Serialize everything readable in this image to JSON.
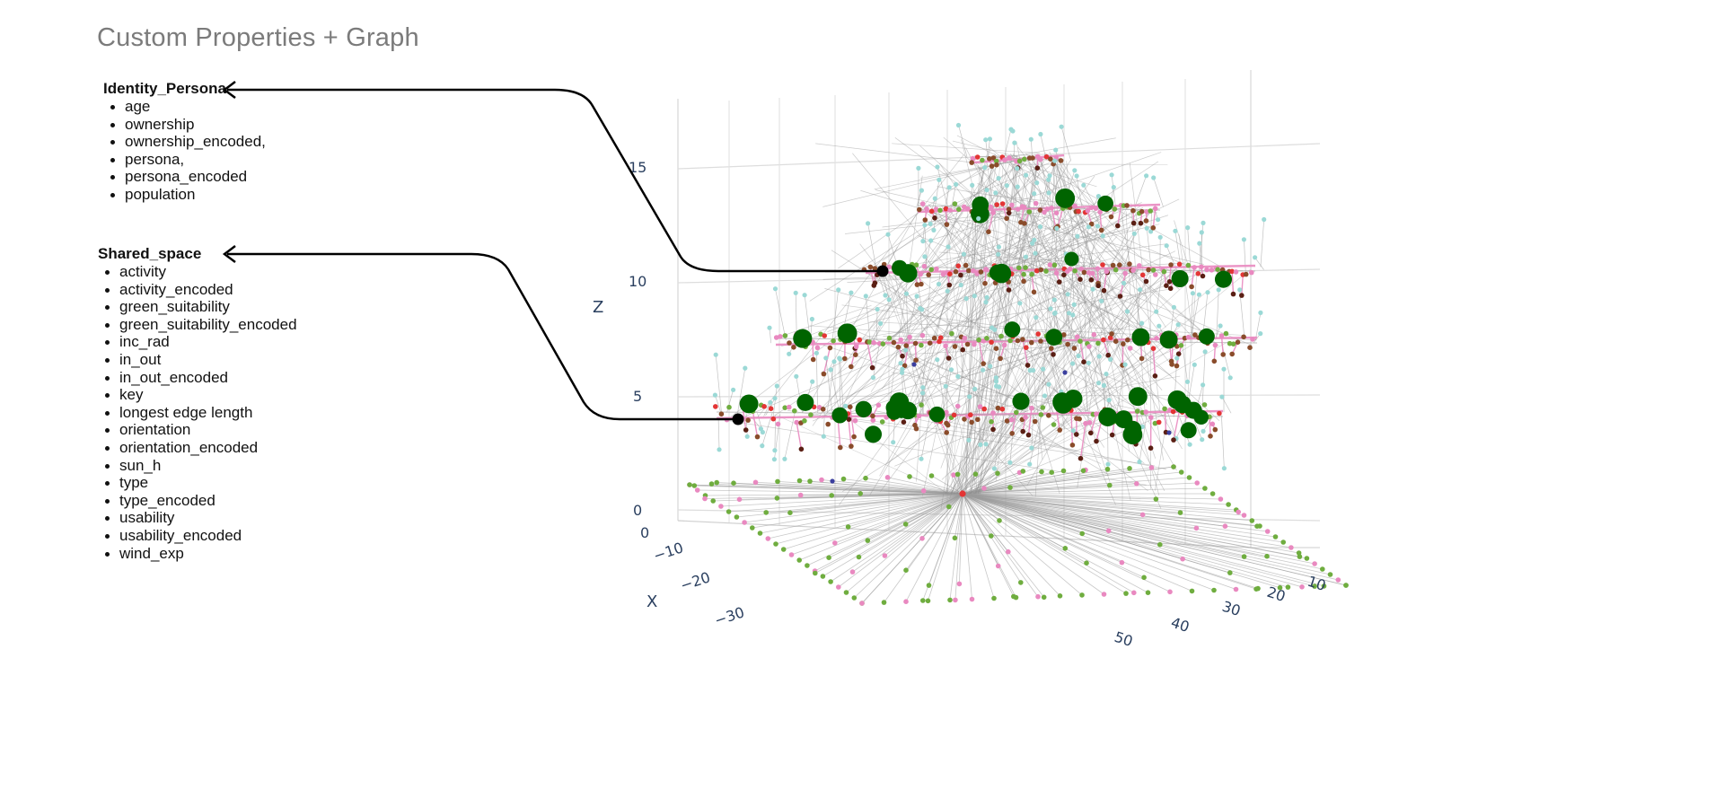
{
  "title": "Custom Properties + Graph",
  "groups": {
    "identity": {
      "name": "Identity_Persona",
      "items": [
        "age",
        "ownership",
        "ownership_encoded,",
        "persona,",
        "persona_encoded",
        "population"
      ]
    },
    "shared": {
      "name": "Shared_space",
      "items": [
        "activity",
        "activity_encoded",
        "green_suitability",
        "green_suitability_encoded",
        "inc_rad",
        "in_out",
        "in_out_encoded",
        "key",
        "longest edge length",
        "orientation",
        "orientation_encoded",
        "sun_h",
        "type",
        "type_encoded",
        "usability",
        "usability_encoded",
        "wind_exp"
      ]
    }
  },
  "chart_data": {
    "type": "scatter",
    "projection": "3d",
    "axes": {
      "x": {
        "label": "X",
        "ticks": [
          "0",
          "−10",
          "−20",
          "−30"
        ]
      },
      "y": {
        "label": "",
        "ticks": [
          "10",
          "20",
          "30",
          "40",
          "50"
        ]
      },
      "z": {
        "label": "Z",
        "ticks": [
          "0",
          "5",
          "10",
          "15"
        ],
        "range": [
          0,
          17
        ]
      }
    },
    "grid": true,
    "layers_z": [
      0,
      5,
      7.5,
      10,
      12.5,
      15
    ],
    "node_colors": {
      "green_node": "#006400",
      "cyan_node": "#9bd9d6",
      "pink_node": "#e989c0",
      "lime_node": "#6fad3f",
      "brown_node": "#8a4c2b",
      "red_node": "#e33535",
      "navy_node": "#3b3f9e",
      "edge": "#9a9a9a",
      "arrow": "#000000"
    }
  }
}
